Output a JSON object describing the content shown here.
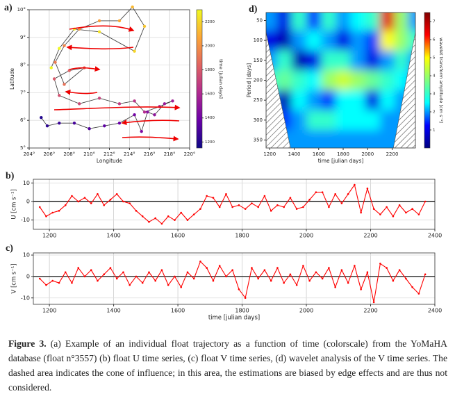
{
  "chart_data": [
    {
      "type": "scatter",
      "label": "a)",
      "xlabel": "Longitude",
      "ylabel": "Latitude",
      "x": [
        205.2,
        205.8,
        207,
        208.5,
        210,
        211.5,
        213,
        214.5,
        215.2,
        215.8,
        216.5,
        217.5,
        218.3,
        217,
        215.5,
        214.5,
        213,
        211,
        209,
        207,
        206.5,
        208,
        209.5,
        207.5,
        206.6,
        207.5,
        209,
        211,
        213,
        214.3,
        215.5,
        214.5,
        211,
        208.5,
        207,
        206.2
      ],
      "y": [
        6.1,
        5.8,
        5.9,
        5.9,
        5.7,
        5.8,
        5.9,
        6.2,
        5.6,
        6.3,
        6.2,
        6.6,
        6.7,
        6.5,
        6.3,
        6.7,
        6.6,
        6.8,
        6.6,
        6.9,
        7.5,
        7.8,
        7.9,
        7.3,
        8.1,
        8.7,
        9.3,
        9.6,
        9.6,
        10.1,
        9.4,
        8.5,
        9.2,
        9.3,
        8.6,
        7.9
      ],
      "c": [
        1200,
        1230,
        1260,
        1290,
        1320,
        1350,
        1380,
        1410,
        1440,
        1470,
        1500,
        1530,
        1560,
        1590,
        1620,
        1650,
        1680,
        1710,
        1740,
        1770,
        1800,
        1830,
        1860,
        1890,
        1920,
        1960,
        2000,
        2040,
        2080,
        2120,
        2160,
        2200,
        2240,
        2280,
        2320,
        2360
      ],
      "line_color": "#444444",
      "colormap": [
        "#0d0887",
        "#6a00a8",
        "#b12a90",
        "#e16462",
        "#fca636",
        "#f0f921"
      ],
      "clim": [
        1150,
        2300
      ],
      "cticks": [
        1200,
        1400,
        1600,
        1800,
        2000,
        2200
      ],
      "clabel": "time [julian days]",
      "xlim": [
        204,
        220
      ],
      "xticks": [
        {
          "value": 204,
          "label": "204°"
        },
        {
          "value": 206,
          "label": "206°"
        },
        {
          "value": 208,
          "label": "208°"
        },
        {
          "value": 210,
          "label": "210°"
        },
        {
          "value": 212,
          "label": "212°"
        },
        {
          "value": 214,
          "label": "214°"
        },
        {
          "value": 216,
          "label": "216°"
        },
        {
          "value": 218,
          "label": "218°"
        },
        {
          "value": 220,
          "label": "220°"
        }
      ],
      "ylim": [
        5,
        10
      ],
      "yticks": [
        {
          "value": 5,
          "label": "5°"
        },
        {
          "value": 6,
          "label": "6°"
        },
        {
          "value": 7,
          "label": "7°"
        },
        {
          "value": 8,
          "label": "8°"
        },
        {
          "value": 9,
          "label": "9°"
        },
        {
          "value": 10,
          "label": "10°"
        }
      ],
      "grid": true
    },
    {
      "type": "heatmap",
      "label": "d)",
      "xlabel": "time [julian days]",
      "ylabel": "Period [days]",
      "x": [
        1200,
        1320,
        1440,
        1560,
        1680,
        1800,
        1920,
        2040,
        2160,
        2280,
        2380
      ],
      "y": [
        50,
        100,
        150,
        200,
        250,
        300,
        350
      ],
      "values": [
        [
          2,
          1,
          3,
          1.5,
          3,
          2,
          2.5,
          3,
          6.5,
          4,
          2
        ],
        [
          1,
          0.5,
          2,
          2.5,
          2,
          1,
          2,
          1.5,
          5,
          4,
          3
        ],
        [
          2,
          3,
          0.5,
          1,
          3,
          3,
          2,
          1,
          2,
          3,
          2
        ],
        [
          3,
          3.5,
          3,
          2.5,
          4,
          4.5,
          4,
          3.5,
          3,
          2.5,
          2
        ],
        [
          2,
          0.5,
          2.5,
          2,
          1.5,
          2.5,
          2.5,
          1,
          2.5,
          2,
          2
        ],
        [
          2,
          1.5,
          2,
          3,
          3,
          2.5,
          2.5,
          2.5,
          2,
          2,
          2
        ],
        [
          2,
          2,
          2,
          2,
          2,
          2,
          2,
          2,
          2,
          2,
          2
        ]
      ],
      "coi": {
        "period": [
          80,
          370
        ],
        "left": [
          1170,
          1370
        ],
        "right": [
          2390,
          2210
        ]
      },
      "colormap": [
        "#00007f",
        "#0000ff",
        "#00ffff",
        "#7fff7f",
        "#ffff00",
        "#ff0000",
        "#7f0000"
      ],
      "clim": [
        0,
        7.5
      ],
      "cticks": [
        1,
        2,
        3,
        4,
        5,
        6,
        7
      ],
      "clabel": "wavelet transform amplitude [cm s⁻¹]",
      "xlim": [
        1170,
        2390
      ],
      "xticks": [
        1200,
        1400,
        1600,
        1800,
        2000,
        2200
      ],
      "ylim": [
        370,
        30
      ],
      "yticks": [
        50,
        100,
        150,
        200,
        250,
        300,
        350
      ]
    },
    {
      "type": "line",
      "label": "b)",
      "ylabel": "U [cm s⁻¹]",
      "color": "#ff0000",
      "x": [
        1170,
        1190,
        1210,
        1230,
        1250,
        1270,
        1290,
        1310,
        1330,
        1350,
        1370,
        1390,
        1410,
        1430,
        1450,
        1470,
        1490,
        1510,
        1530,
        1550,
        1570,
        1590,
        1610,
        1630,
        1650,
        1670,
        1690,
        1710,
        1730,
        1750,
        1770,
        1790,
        1810,
        1830,
        1850,
        1870,
        1890,
        1910,
        1930,
        1950,
        1970,
        1990,
        2010,
        2030,
        2050,
        2070,
        2090,
        2110,
        2130,
        2150,
        2170,
        2190,
        2210,
        2230,
        2250,
        2270,
        2290,
        2310,
        2330,
        2350,
        2370
      ],
      "values": [
        -3,
        -8,
        -6,
        -5,
        -2,
        3,
        0,
        2,
        -1,
        4,
        -2,
        1,
        4,
        0,
        -1,
        -5,
        -8,
        -11,
        -9,
        -12,
        -8,
        -10,
        -6,
        -10,
        -7,
        -4,
        3,
        2,
        -3,
        4,
        -3,
        -2,
        -4,
        -1,
        -3,
        3,
        -5,
        -2,
        -3,
        2,
        -4,
        -3,
        1,
        5,
        5,
        -3,
        4,
        -1,
        4,
        9,
        -6,
        7,
        -4,
        -7,
        -3,
        -8,
        -2,
        -6,
        -4,
        -7,
        0
      ],
      "xlim": [
        1150,
        2400
      ],
      "xticks": [
        1200,
        1400,
        1600,
        1800,
        2000,
        2200,
        2400
      ],
      "ylim": [
        -15,
        12
      ],
      "yticks": [
        -10,
        0,
        10
      ],
      "grid": true,
      "zero_line": true
    },
    {
      "type": "line",
      "label": "c)",
      "xlabel": "time [julian days]",
      "ylabel": "V [cm s⁻¹]",
      "color": "#ff0000",
      "x": [
        1170,
        1190,
        1210,
        1230,
        1250,
        1270,
        1290,
        1310,
        1330,
        1350,
        1370,
        1390,
        1410,
        1430,
        1450,
        1470,
        1490,
        1510,
        1530,
        1550,
        1570,
        1590,
        1610,
        1630,
        1650,
        1670,
        1690,
        1710,
        1730,
        1750,
        1770,
        1790,
        1810,
        1830,
        1850,
        1870,
        1890,
        1910,
        1930,
        1950,
        1970,
        1990,
        2010,
        2030,
        2050,
        2070,
        2090,
        2110,
        2130,
        2150,
        2170,
        2190,
        2210,
        2230,
        2250,
        2270,
        2290,
        2310,
        2330,
        2350,
        2370
      ],
      "values": [
        -1,
        -4,
        -2,
        -3,
        2,
        -3,
        4,
        0,
        3,
        -2,
        1,
        4,
        -1,
        2,
        -4,
        0,
        -3,
        2,
        -2,
        3,
        -4,
        0,
        -5,
        2,
        -1,
        7,
        4,
        -2,
        5,
        0,
        3,
        -6,
        -10,
        4,
        -1,
        3,
        -2,
        4,
        -3,
        1,
        -4,
        5,
        -2,
        2,
        -1,
        4,
        -5,
        3,
        -3,
        5,
        -6,
        2,
        -12,
        6,
        4,
        -2,
        3,
        -1,
        -5,
        -8,
        1
      ],
      "xlim": [
        1150,
        2400
      ],
      "xticks": [
        1200,
        1400,
        1600,
        1800,
        2000,
        2200,
        2400
      ],
      "ylim": [
        -13,
        11
      ],
      "yticks": [
        -10,
        0,
        10
      ],
      "grid": true,
      "zero_line": true
    }
  ],
  "caption": {
    "label": "Figure 3.",
    "text": "(a) Example of an individual float trajectory as a function of time (colorscale) from the YoMaHA database (float n°3557) (b) float U time series, (c) float V time series, (d) wavelet analysis of the V time series. The dashed area indicates the cone of influence; in this area, the estimations are biased by edge effects and are thus not considered."
  }
}
